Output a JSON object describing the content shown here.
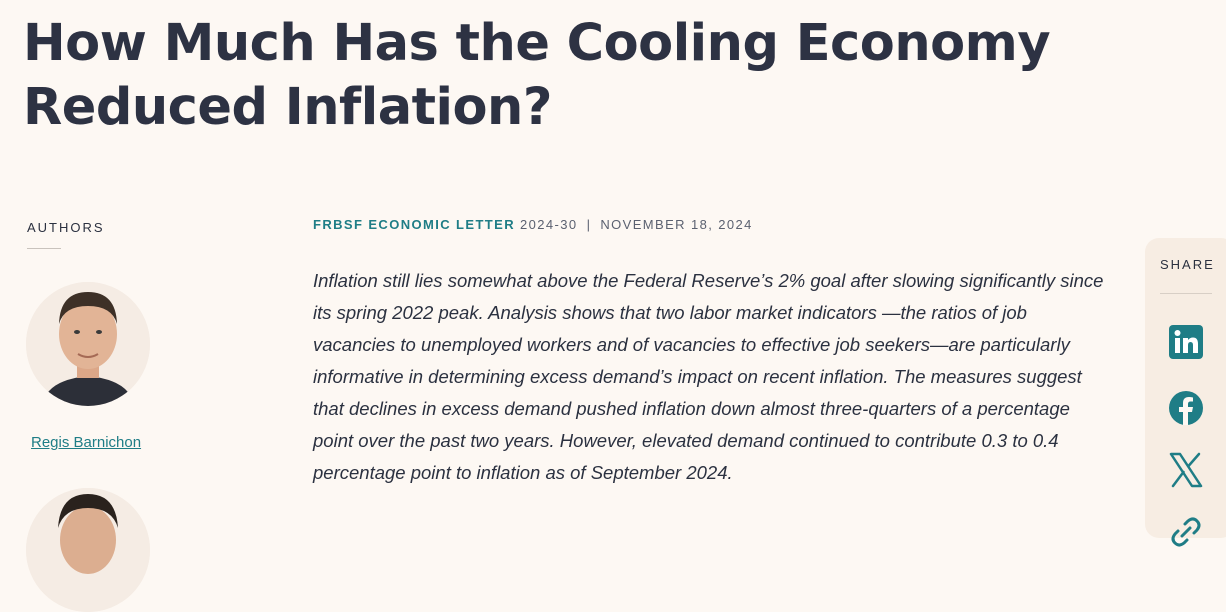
{
  "article": {
    "title": "How Much Has the Cooling Economy Reduced Inflation?",
    "series": "FRBSF ECONOMIC LETTER",
    "number": "2024-30",
    "separator": "|",
    "date": "NOVEMBER 18, 2024",
    "summary": "Inflation still lies somewhat above the Federal Reserve’s 2% goal after slowing significantly since its spring 2022 peak. Analysis shows that two labor market indicators —the ratios of job vacancies to unemployed workers and of vacancies to effective job seekers—are particularly informative in determining excess demand’s impact on recent inflation. The measures suggest that declines in excess demand pushed inflation down almost three-quarters of a percentage point over the past two years. However, elevated demand continued to contribute 0.3 to 0.4 percentage point to inflation as of September 2024."
  },
  "authors": {
    "label": "AUTHORS",
    "list": [
      {
        "name": "Regis Barnichon"
      }
    ]
  },
  "share": {
    "label": "SHARE",
    "icons": [
      "linkedin-icon",
      "facebook-icon",
      "x-icon",
      "link-icon"
    ],
    "accent": "#1f7d86"
  },
  "colors": {
    "background": "#fdf8f3",
    "text": "#2d3243",
    "accent": "#1f7d86",
    "panel": "#f7ede3"
  }
}
